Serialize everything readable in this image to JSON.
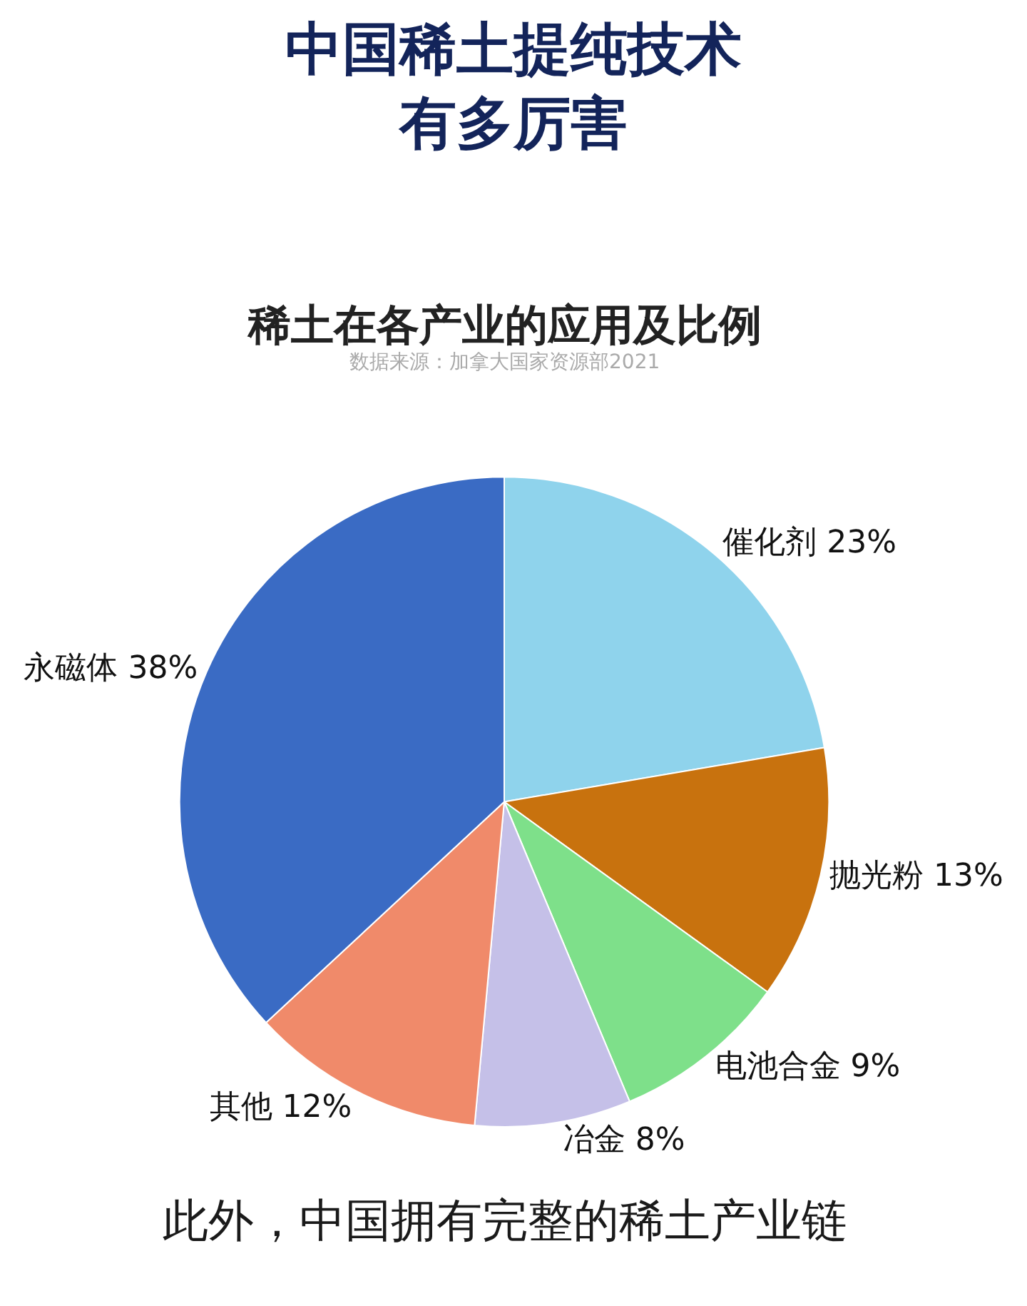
{
  "chart_data": {
    "type": "pie",
    "title": "中国稀土提纯技术有多厉害",
    "subtitle": "稀土在各产业的应用及比例",
    "categories": [
      "催化剂",
      "抛光粉",
      "电池合金",
      "冶金",
      "其他",
      "永磁体"
    ],
    "values": [
      23,
      13,
      9,
      8,
      12,
      38
    ],
    "colors": [
      "#8fd3ec",
      "#c8720e",
      "#7ee08a",
      "#c5c0e8",
      "#f08a6a",
      "#3a6bc4"
    ],
    "value_labels": [
      "23%",
      "13%",
      "9%",
      "8%",
      "12%",
      "38%"
    ],
    "annotations": [
      "数据来源：加拿大国家资源部2021",
      "此外，中国拥有完整的稀土产业链"
    ]
  }
}
